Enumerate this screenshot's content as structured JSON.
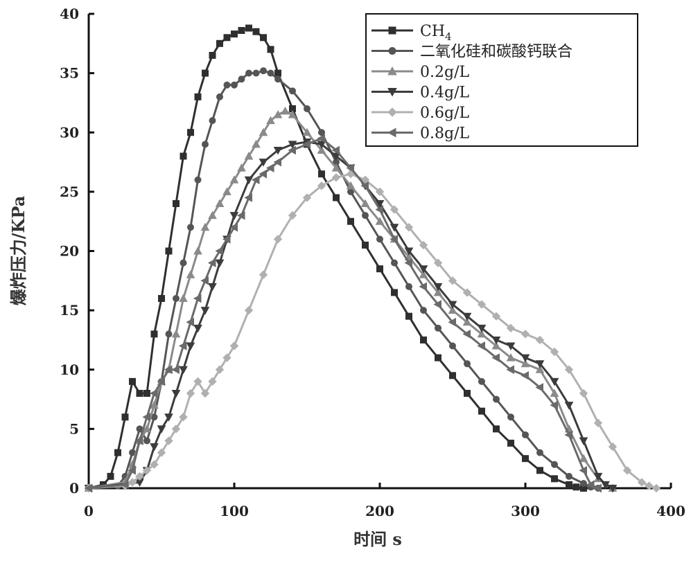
{
  "chart_data": {
    "type": "line",
    "xlabel": "时间 s",
    "ylabel": "爆炸压力/KPa",
    "xlim": [
      0,
      400
    ],
    "ylim": [
      0,
      40
    ],
    "xticks": [
      0,
      100,
      200,
      300,
      400
    ],
    "yticks": [
      0,
      5,
      10,
      15,
      20,
      25,
      30,
      35,
      40
    ],
    "grid": false,
    "legend_position": "top-right",
    "series": [
      {
        "name": "CH4",
        "color": "#2f2f2f",
        "marker": "square",
        "x": [
          0,
          10,
          15,
          20,
          25,
          30,
          35,
          40,
          45,
          50,
          55,
          60,
          65,
          70,
          75,
          80,
          85,
          90,
          95,
          100,
          105,
          110,
          115,
          120,
          125,
          130,
          140,
          150,
          160,
          170,
          180,
          190,
          200,
          210,
          220,
          230,
          240,
          250,
          260,
          270,
          280,
          290,
          300,
          310,
          320,
          330,
          335,
          340
        ],
        "y": [
          0,
          0.3,
          1,
          3,
          6,
          9,
          8,
          8,
          13,
          16,
          20,
          24,
          28,
          30,
          33,
          35,
          36.5,
          37.5,
          38,
          38.3,
          38.6,
          38.8,
          38.5,
          38,
          37,
          35,
          32,
          29,
          26.5,
          24.5,
          22.5,
          20.5,
          18.5,
          16.5,
          14.5,
          12.5,
          11,
          9.5,
          8,
          6.5,
          5,
          3.8,
          2.5,
          1.5,
          0.8,
          0.3,
          0.1,
          0
        ]
      },
      {
        "name": "二氧化硅和碳酸钙联合",
        "color": "#555555",
        "marker": "circle",
        "x": [
          0,
          20,
          25,
          30,
          35,
          40,
          45,
          50,
          55,
          60,
          65,
          70,
          75,
          80,
          85,
          90,
          95,
          100,
          105,
          110,
          115,
          120,
          125,
          130,
          140,
          150,
          160,
          170,
          180,
          190,
          200,
          210,
          220,
          230,
          240,
          250,
          260,
          270,
          280,
          290,
          300,
          310,
          320,
          330,
          340,
          345,
          350
        ],
        "y": [
          0,
          0.2,
          1,
          3,
          5,
          4,
          6,
          9,
          13,
          16,
          19,
          22,
          26,
          29,
          31,
          33,
          34,
          34,
          34.5,
          35,
          35,
          35.2,
          35,
          34.5,
          33.5,
          32,
          30,
          27.5,
          25,
          23,
          21,
          19,
          17,
          15,
          13.5,
          12,
          10.5,
          9,
          7.5,
          6,
          4.5,
          3,
          2,
          1,
          0.4,
          0.1,
          0
        ]
      },
      {
        "name": "0.2g/L",
        "color": "#8a8a8a",
        "marker": "triangle-up",
        "x": [
          0,
          25,
          30,
          35,
          40,
          45,
          50,
          55,
          60,
          65,
          70,
          75,
          80,
          85,
          90,
          95,
          100,
          105,
          110,
          115,
          120,
          125,
          130,
          135,
          140,
          150,
          160,
          170,
          180,
          190,
          200,
          210,
          220,
          230,
          240,
          250,
          260,
          270,
          280,
          290,
          300,
          310,
          320,
          330,
          340,
          350,
          360
        ],
        "y": [
          0,
          0.5,
          2,
          4,
          5,
          7,
          9,
          10,
          13,
          16,
          18,
          20,
          22,
          23,
          24,
          25,
          26,
          27,
          28,
          29,
          30,
          31,
          31.5,
          31.8,
          31.5,
          30,
          28.5,
          27,
          25.5,
          24,
          22.5,
          21,
          19.5,
          18,
          16.5,
          15,
          14,
          13,
          12,
          11,
          10.5,
          10,
          8,
          5,
          2.5,
          0.8,
          0
        ]
      },
      {
        "name": "0.4g/L",
        "color": "#3c3c3c",
        "marker": "triangle-down",
        "x": [
          0,
          35,
          40,
          45,
          50,
          55,
          60,
          65,
          70,
          75,
          80,
          85,
          90,
          95,
          100,
          110,
          120,
          130,
          140,
          150,
          160,
          170,
          180,
          190,
          200,
          210,
          220,
          230,
          240,
          250,
          260,
          270,
          280,
          290,
          300,
          310,
          320,
          330,
          340,
          350,
          355,
          360
        ],
        "y": [
          0,
          0.5,
          1.5,
          3.5,
          5,
          6,
          8,
          10,
          12,
          13.5,
          15,
          17,
          19,
          21,
          23,
          26,
          27.5,
          28.5,
          29,
          29.2,
          29,
          28,
          27,
          25.5,
          24,
          22,
          20,
          18.5,
          17,
          15.5,
          14.5,
          13.5,
          12.5,
          12,
          11,
          10.5,
          9,
          7,
          4,
          1,
          0.3,
          0
        ]
      },
      {
        "name": "0.6g/L",
        "color": "#b0b0b0",
        "marker": "diamond",
        "x": [
          0,
          25,
          30,
          35,
          40,
          45,
          50,
          55,
          60,
          65,
          70,
          75,
          80,
          85,
          90,
          95,
          100,
          110,
          120,
          130,
          140,
          150,
          160,
          170,
          180,
          190,
          200,
          210,
          220,
          230,
          240,
          250,
          260,
          270,
          280,
          290,
          300,
          310,
          320,
          330,
          340,
          350,
          360,
          370,
          380,
          385,
          390
        ],
        "y": [
          0,
          0.2,
          0.5,
          1,
          1.5,
          2,
          3,
          4,
          5,
          6,
          8,
          9,
          8,
          9,
          10,
          11,
          12,
          15,
          18,
          21,
          23,
          24.5,
          25.5,
          26.2,
          26.5,
          26,
          25,
          23.5,
          22,
          20.5,
          19,
          17.5,
          16.5,
          15.5,
          14.5,
          13.5,
          13,
          12.5,
          11.5,
          10,
          8,
          5.5,
          3.5,
          1.5,
          0.5,
          0.2,
          0
        ]
      },
      {
        "name": "0.8g/L",
        "color": "#6a6a6a",
        "marker": "triangle-left",
        "x": [
          0,
          25,
          30,
          35,
          40,
          45,
          50,
          55,
          60,
          65,
          70,
          75,
          80,
          85,
          90,
          95,
          100,
          105,
          110,
          115,
          120,
          125,
          130,
          140,
          150,
          160,
          170,
          180,
          190,
          200,
          210,
          220,
          230,
          240,
          250,
          260,
          270,
          280,
          290,
          300,
          310,
          320,
          330,
          340,
          345,
          350
        ],
        "y": [
          0,
          0.3,
          1.5,
          4,
          6,
          8,
          9,
          10,
          10,
          12,
          14,
          16,
          17.5,
          19,
          20,
          21,
          22,
          23,
          24.5,
          26,
          26.5,
          27,
          27.5,
          28.5,
          29,
          29.5,
          28.5,
          27,
          25.5,
          23.5,
          21,
          19,
          17,
          15.5,
          14,
          13,
          12,
          11,
          10,
          9.5,
          8.5,
          7,
          4.5,
          1.5,
          0.3,
          0
        ]
      }
    ]
  }
}
